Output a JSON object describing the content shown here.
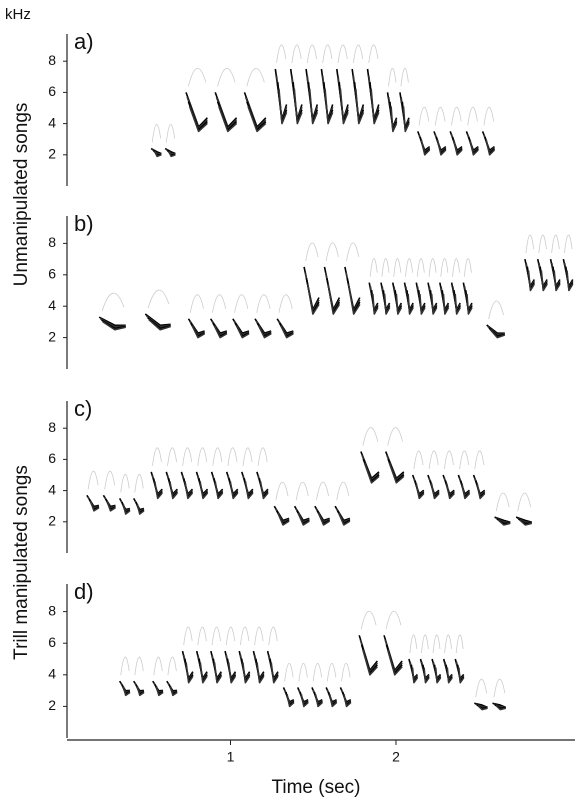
{
  "chart_data": [
    {
      "type": "spectrogram",
      "label": "a)",
      "y_unit": "kHz",
      "ylabel": "Unmanipulated songs",
      "xlim": [
        0,
        3.1
      ],
      "ylim": [
        0,
        10
      ],
      "yticks": [
        2,
        4,
        6,
        8
      ],
      "syllables": [
        {
          "start": 0.51,
          "end": 0.68,
          "low": 1.9,
          "high": 2.4,
          "count": 2
        },
        {
          "start": 0.71,
          "end": 1.24,
          "low": 3.5,
          "high": 6,
          "count": 3
        },
        {
          "start": 1.26,
          "end": 1.91,
          "low": 4,
          "high": 7.5,
          "count": 7
        },
        {
          "start": 1.94,
          "end": 2.09,
          "low": 3.5,
          "high": 6,
          "count": 2
        },
        {
          "start": 2.12,
          "end": 2.61,
          "low": 2,
          "high": 3.5,
          "count": 5
        }
      ]
    },
    {
      "type": "spectrogram",
      "label": "b)",
      "xlim": [
        0,
        3.1
      ],
      "ylim": [
        0,
        10
      ],
      "yticks": [
        2,
        4,
        6,
        8
      ],
      "syllables": [
        {
          "start": 0.18,
          "end": 0.4,
          "low": 2.5,
          "high": 3.3,
          "count": 1
        },
        {
          "start": 0.46,
          "end": 0.67,
          "low": 2.5,
          "high": 3.5,
          "count": 1
        },
        {
          "start": 0.73,
          "end": 1.4,
          "low": 2,
          "high": 3.2,
          "count": 5
        },
        {
          "start": 1.43,
          "end": 1.8,
          "low": 3.5,
          "high": 6.5,
          "count": 3
        },
        {
          "start": 1.83,
          "end": 2.47,
          "low": 3.5,
          "high": 5.5,
          "count": 9
        },
        {
          "start": 2.53,
          "end": 2.68,
          "low": 2,
          "high": 2.8,
          "count": 1
        },
        {
          "start": 2.77,
          "end": 3.08,
          "low": 5,
          "high": 7,
          "count": 4
        }
      ]
    },
    {
      "type": "spectrogram",
      "label": "c)",
      "ylabel": "Trill manipulated songs",
      "xlim": [
        0,
        3.1
      ],
      "ylim": [
        0,
        10
      ],
      "yticks": [
        2,
        4,
        6,
        8
      ],
      "syllables": [
        {
          "start": 0.12,
          "end": 0.32,
          "low": 2.7,
          "high": 3.7,
          "count": 2
        },
        {
          "start": 0.32,
          "end": 0.49,
          "low": 2.5,
          "high": 3.5,
          "count": 2
        },
        {
          "start": 0.51,
          "end": 1.24,
          "low": 3.5,
          "high": 5.2,
          "count": 8
        },
        {
          "start": 1.25,
          "end": 1.74,
          "low": 1.8,
          "high": 3,
          "count": 4
        },
        {
          "start": 1.77,
          "end": 2.07,
          "low": 4.5,
          "high": 6.5,
          "count": 2
        },
        {
          "start": 2.09,
          "end": 2.55,
          "low": 3.5,
          "high": 5,
          "count": 5
        },
        {
          "start": 2.58,
          "end": 2.84,
          "low": 1.8,
          "high": 2.3,
          "count": 2
        }
      ]
    },
    {
      "type": "spectrogram",
      "label": "d)",
      "xlabel": "Time (sec)",
      "xticks": [
        1,
        2
      ],
      "xlim": [
        0,
        3.1
      ],
      "ylim": [
        0,
        10
      ],
      "yticks": [
        2,
        4,
        6,
        8
      ],
      "syllables": [
        {
          "start": 0.32,
          "end": 0.49,
          "low": 2.7,
          "high": 3.6,
          "count": 2
        },
        {
          "start": 0.52,
          "end": 0.69,
          "low": 2.7,
          "high": 3.6,
          "count": 2
        },
        {
          "start": 0.7,
          "end": 1.3,
          "low": 3.5,
          "high": 5.5,
          "count": 7
        },
        {
          "start": 1.31,
          "end": 1.74,
          "low": 2,
          "high": 3.2,
          "count": 5
        },
        {
          "start": 1.76,
          "end": 2.06,
          "low": 4,
          "high": 6.5,
          "count": 2
        },
        {
          "start": 2.07,
          "end": 2.42,
          "low": 3.5,
          "high": 5,
          "count": 5
        },
        {
          "start": 2.46,
          "end": 2.68,
          "low": 1.8,
          "high": 2.2,
          "count": 2
        }
      ]
    }
  ]
}
